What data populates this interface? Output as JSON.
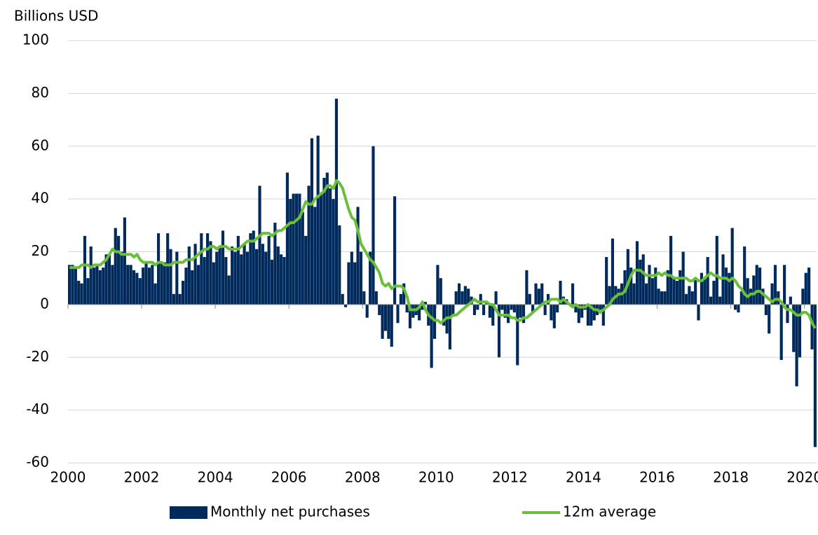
{
  "chart_data": {
    "type": "bar",
    "y_label": "Billions USD",
    "xlim": [
      2000,
      2020.33
    ],
    "xticks": [
      2000,
      2002,
      2004,
      2006,
      2008,
      2010,
      2012,
      2014,
      2016,
      2018,
      2020
    ],
    "ylim": [
      -60,
      100
    ],
    "yticks": [
      -60,
      -40,
      -20,
      0,
      20,
      40,
      60,
      80,
      100
    ],
    "grid": true,
    "legend": "bottom",
    "x": [
      2000,
      2000.083,
      2000.167,
      2000.25,
      2000.333,
      2000.417,
      2000.5,
      2000.583,
      2000.667,
      2000.75,
      2000.833,
      2000.917,
      2001,
      2001.083,
      2001.167,
      2001.25,
      2001.333,
      2001.417,
      2001.5,
      2001.583,
      2001.667,
      2001.75,
      2001.833,
      2001.917,
      2002,
      2002.083,
      2002.167,
      2002.25,
      2002.333,
      2002.417,
      2002.5,
      2002.583,
      2002.667,
      2002.75,
      2002.833,
      2002.917,
      2003,
      2003.083,
      2003.167,
      2003.25,
      2003.333,
      2003.417,
      2003.5,
      2003.583,
      2003.667,
      2003.75,
      2003.833,
      2003.917,
      2004,
      2004.083,
      2004.167,
      2004.25,
      2004.333,
      2004.417,
      2004.5,
      2004.583,
      2004.667,
      2004.75,
      2004.833,
      2004.917,
      2005,
      2005.083,
      2005.167,
      2005.25,
      2005.333,
      2005.417,
      2005.5,
      2005.583,
      2005.667,
      2005.75,
      2005.833,
      2005.917,
      2006,
      2006.083,
      2006.167,
      2006.25,
      2006.333,
      2006.417,
      2006.5,
      2006.583,
      2006.667,
      2006.75,
      2006.833,
      2006.917,
      2007,
      2007.083,
      2007.167,
      2007.25,
      2007.333,
      2007.417,
      2007.5,
      2007.583,
      2007.667,
      2007.75,
      2007.833,
      2007.917,
      2008,
      2008.083,
      2008.167,
      2008.25,
      2008.333,
      2008.417,
      2008.5,
      2008.583,
      2008.667,
      2008.75,
      2008.833,
      2008.917,
      2009,
      2009.083,
      2009.167,
      2009.25,
      2009.333,
      2009.417,
      2009.5,
      2009.583,
      2009.667,
      2009.75,
      2009.833,
      2009.917,
      2010,
      2010.083,
      2010.167,
      2010.25,
      2010.333,
      2010.417,
      2010.5,
      2010.583,
      2010.667,
      2010.75,
      2010.833,
      2010.917,
      2011,
      2011.083,
      2011.167,
      2011.25,
      2011.333,
      2011.417,
      2011.5,
      2011.583,
      2011.667,
      2011.75,
      2011.833,
      2011.917,
      2012,
      2012.083,
      2012.167,
      2012.25,
      2012.333,
      2012.417,
      2012.5,
      2012.583,
      2012.667,
      2012.75,
      2012.833,
      2012.917,
      2013,
      2013.083,
      2013.167,
      2013.25,
      2013.333,
      2013.417,
      2013.5,
      2013.583,
      2013.667,
      2013.75,
      2013.833,
      2013.917,
      2014,
      2014.083,
      2014.167,
      2014.25,
      2014.333,
      2014.417,
      2014.5,
      2014.583,
      2014.667,
      2014.75,
      2014.833,
      2014.917,
      2015,
      2015.083,
      2015.167,
      2015.25,
      2015.333,
      2015.417,
      2015.5,
      2015.583,
      2015.667,
      2015.75,
      2015.833,
      2015.917,
      2016,
      2016.083,
      2016.167,
      2016.25,
      2016.333,
      2016.417,
      2016.5,
      2016.583,
      2016.667,
      2016.75,
      2016.833,
      2016.917,
      2017,
      2017.083,
      2017.167,
      2017.25,
      2017.333,
      2017.417,
      2017.5,
      2017.583,
      2017.667,
      2017.75,
      2017.833,
      2017.917,
      2018,
      2018.083,
      2018.167,
      2018.25,
      2018.333,
      2018.417,
      2018.5,
      2018.583,
      2018.667,
      2018.75,
      2018.833,
      2018.917,
      2019,
      2019.083,
      2019.167,
      2019.25,
      2019.333,
      2019.417,
      2019.5,
      2019.583,
      2019.667,
      2019.75,
      2019.833,
      2019.917,
      2020,
      2020.083,
      2020.167,
      2020.25
    ],
    "series": [
      {
        "name": "Monthly net purchases",
        "type": "bar",
        "color": "#002a5c",
        "values": [
          15,
          15,
          14,
          9,
          8,
          26,
          10,
          22,
          14,
          15,
          13,
          14,
          19,
          19,
          15,
          29,
          26,
          20,
          33,
          15,
          15,
          13,
          12,
          10,
          14,
          16,
          14,
          15,
          8,
          27,
          16,
          16,
          27,
          21,
          4,
          20,
          4,
          9,
          14,
          22,
          13,
          23,
          15,
          27,
          18,
          27,
          24,
          16,
          20,
          22,
          28,
          18,
          11,
          22,
          20,
          26,
          19,
          23,
          20,
          27,
          28,
          21,
          45,
          23,
          20,
          26,
          17,
          31,
          22,
          19,
          18,
          50,
          40,
          42,
          42,
          42,
          35,
          26,
          45,
          63,
          37,
          64,
          42,
          48,
          50,
          44,
          40,
          78,
          30,
          4,
          -1,
          16,
          20,
          16,
          37,
          20,
          5,
          -5,
          20,
          60,
          5,
          -4,
          -13,
          -10,
          -13,
          -16,
          41,
          -7,
          4,
          8,
          -3,
          -9,
          -5,
          -4,
          -6,
          -2,
          1,
          -8,
          -24,
          -13,
          15,
          10,
          -8,
          -11,
          -17,
          -4,
          5,
          8,
          5,
          7,
          6,
          3,
          -4,
          -2,
          4,
          -4,
          1,
          -5,
          -8,
          5,
          -20,
          -2,
          -5,
          -7,
          -2,
          -3,
          -23,
          -5,
          -7,
          13,
          4,
          -3,
          8,
          6,
          8,
          -4,
          4,
          -6,
          -9,
          -3,
          9,
          3,
          2,
          0,
          8,
          -3,
          -7,
          -5,
          -2,
          -8,
          -8,
          -6,
          -4,
          -2,
          -8,
          18,
          7,
          25,
          7,
          6,
          8,
          13,
          21,
          14,
          8,
          24,
          17,
          19,
          8,
          15,
          10,
          14,
          6,
          5,
          5,
          13,
          26,
          10,
          9,
          13,
          20,
          4,
          7,
          5,
          10,
          -6,
          12,
          10,
          18,
          3,
          9,
          26,
          3,
          19,
          14,
          12,
          29,
          -2,
          -3,
          5,
          22,
          10,
          6,
          11,
          15,
          14,
          6,
          -4,
          -11,
          8,
          15,
          5,
          -21,
          15,
          -7,
          3,
          -18,
          -31,
          -20,
          6,
          12,
          14,
          -17,
          -54
        ]
      },
      {
        "name": "12m average",
        "type": "line",
        "color": "#6abf3a",
        "values": [
          14,
          14,
          14,
          14,
          15,
          15,
          15,
          14,
          15,
          15,
          15,
          16,
          17,
          19,
          21,
          20,
          20,
          19,
          19,
          19,
          19,
          18,
          19,
          17,
          16,
          16,
          16,
          16,
          15,
          16,
          16,
          15,
          15,
          15,
          16,
          16,
          16,
          16,
          17,
          17,
          17,
          18,
          19,
          20,
          21,
          21,
          22,
          22,
          21,
          22,
          22,
          22,
          21,
          21,
          21,
          21,
          22,
          23,
          24,
          24,
          24,
          25,
          26,
          27,
          27,
          27,
          26,
          27,
          28,
          28,
          29,
          30,
          31,
          31,
          32,
          33,
          36,
          39,
          38,
          38,
          40,
          41,
          42,
          43,
          45,
          45,
          44,
          47,
          46,
          44,
          40,
          36,
          33,
          32,
          28,
          23,
          21,
          19,
          17,
          16,
          14,
          12,
          8,
          7,
          8,
          6,
          7,
          7,
          7,
          6,
          3,
          -2,
          -2,
          -2,
          -1,
          1,
          -2,
          -4,
          -5,
          -6,
          -6,
          -7,
          -6,
          -5,
          -5,
          -4,
          -4,
          -3,
          -2,
          -1,
          0,
          1,
          2,
          1,
          1,
          1,
          1,
          0,
          0,
          -2,
          -4,
          -4,
          -4,
          -4,
          -5,
          -5,
          -6,
          -6,
          -5,
          -5,
          -4,
          -3,
          -2,
          -1,
          0,
          1,
          1,
          2,
          2,
          2,
          1,
          2,
          1,
          0,
          -1,
          0,
          -1,
          -1,
          -1,
          0,
          -1,
          -2,
          -2,
          -3,
          -2,
          -1,
          0,
          2,
          3,
          4,
          4,
          5,
          8,
          11,
          13,
          13,
          13,
          12,
          11,
          11,
          11,
          11,
          12,
          11,
          12,
          11,
          11,
          10,
          10,
          10,
          10,
          10,
          9,
          9,
          10,
          9,
          9,
          10,
          11,
          12,
          11,
          11,
          10,
          10,
          10,
          9,
          10,
          9,
          7,
          6,
          4,
          3,
          4,
          4,
          5,
          5,
          4,
          3,
          2,
          1,
          2,
          2,
          1,
          -1,
          -2,
          -2,
          -3,
          -4,
          -4,
          -3,
          -3,
          -4,
          -7,
          -9
        ]
      }
    ]
  }
}
